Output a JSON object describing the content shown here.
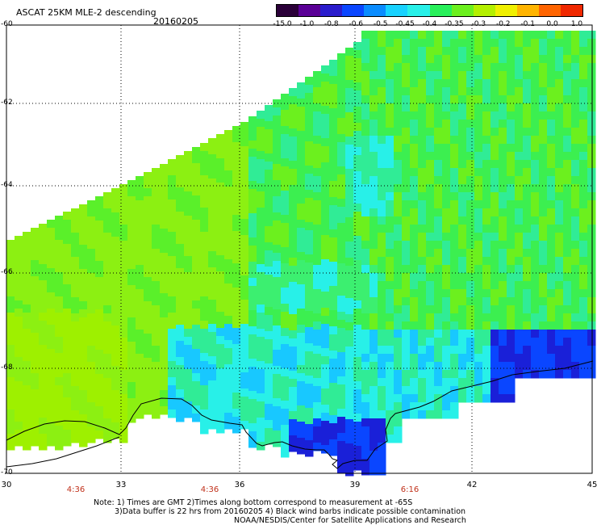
{
  "header": {
    "title": "ASCAT 25KM MLE-2 descending",
    "date": "20160205"
  },
  "colorbar": {
    "labels": [
      "-15.0",
      "-1.0",
      "-0.8",
      "-0.6",
      "-0.5",
      "-0.45",
      "-0.4",
      "-0.35",
      "-0.3",
      "-0.2",
      "-0.1",
      "0.0",
      "1.0"
    ],
    "colors": [
      "#2a0038",
      "#5a0096",
      "#2a1ccc",
      "#0a46ff",
      "#0a8cff",
      "#18d2ff",
      "#28f0e8",
      "#28f05a",
      "#6cf01e",
      "#b4f000",
      "#f0f000",
      "#ffb400",
      "#ff6400",
      "#f02800"
    ]
  },
  "axes": {
    "lat_labels": [
      "-60",
      "-62",
      "-64",
      "-66",
      "-68",
      "-70"
    ],
    "lon_labels": [
      "30",
      "33",
      "36",
      "39",
      "42",
      "45"
    ],
    "time_labels": [
      "4:36",
      "4:36",
      "6:16"
    ]
  },
  "notes": {
    "line1": "Note: 1) Times are GMT 2)Times along bottom correspond to measurement at -65S",
    "line2": "3)Data buffer is 22 hrs from 20160205 4) Black wind barbs indicate possible contamination",
    "line3": "NOAA/NESDIS/Center for Satellite Applications and Research"
  },
  "legend_colors": {
    "background": "#ffffff",
    "grid": "#000000",
    "coastline": "#000000",
    "time_label": "#c0301a"
  }
}
